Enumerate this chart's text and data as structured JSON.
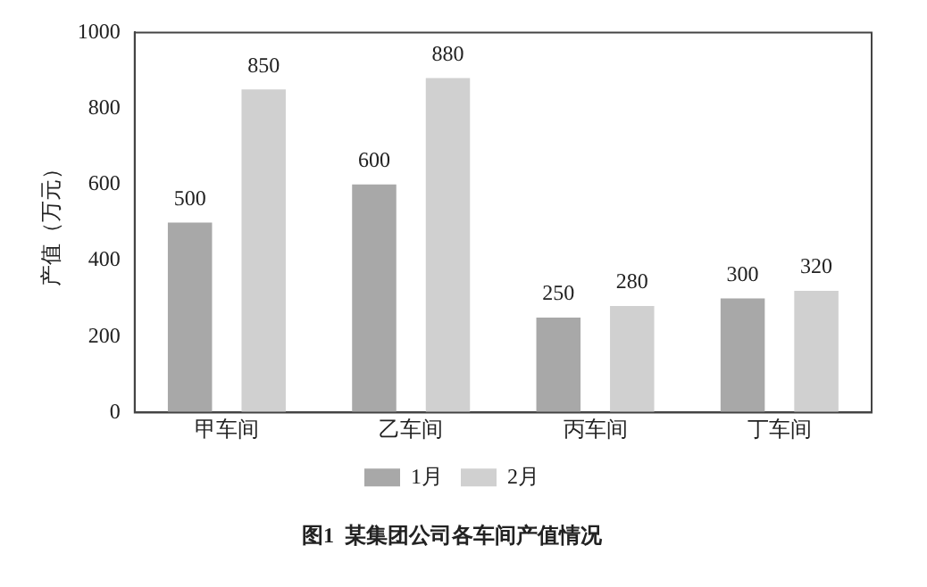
{
  "chart_data": {
    "type": "bar",
    "title": "图1  某集团公司各车间产值情况",
    "ylabel": "产值（万元）",
    "categories": [
      "甲车间",
      "乙车间",
      "丙车间",
      "丁车间"
    ],
    "series": [
      {
        "name": "1月",
        "color": "#a8a8a8",
        "values": [
          500,
          600,
          250,
          300
        ]
      },
      {
        "name": "2月",
        "color": "#d0d0d0",
        "values": [
          850,
          880,
          280,
          320
        ]
      }
    ],
    "ylim": [
      0,
      1000
    ],
    "yticks": [
      0,
      200,
      400,
      600,
      800,
      1000
    ],
    "grid": false,
    "legend": "bottom",
    "data_labels": true
  }
}
